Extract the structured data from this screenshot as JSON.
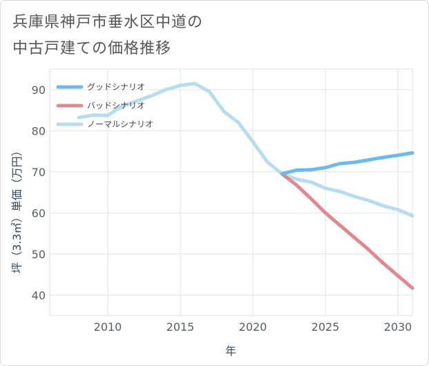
{
  "title": "兵庫県神戸市垂水区中道の\n中古戸建ての価格推移",
  "chart_data": {
    "type": "line",
    "title": "兵庫県神戸市垂水区中道の中古戸建ての価格推移",
    "xlabel": "年",
    "ylabel": "坪（3.3㎡）単価（万円）",
    "xlim": [
      2006,
      2031
    ],
    "ylim": [
      35,
      95
    ],
    "xticks": [
      2010,
      2015,
      2020,
      2025,
      2030
    ],
    "yticks": [
      40,
      50,
      60,
      70,
      80,
      90
    ],
    "grid": true,
    "legend_position": "top-left",
    "series": [
      {
        "name": "グッドシナリオ",
        "color": "#6db8ec",
        "x": [
          2022,
          2023,
          2024,
          2025,
          2026,
          2027,
          2028,
          2029,
          2030,
          2031
        ],
        "y": [
          69.5,
          70.4,
          70.5,
          71.0,
          72.0,
          72.3,
          72.9,
          73.5,
          74.0,
          74.6
        ]
      },
      {
        "name": "バッドシナリオ",
        "color": "#e0888f",
        "x": [
          2022,
          2023,
          2024,
          2025,
          2026,
          2027,
          2028,
          2029,
          2030,
          2031
        ],
        "y": [
          69.5,
          66.8,
          63.5,
          60.0,
          57.0,
          54.0,
          51.0,
          47.7,
          44.7,
          41.7
        ]
      },
      {
        "name": "ノーマルシナリオ",
        "color": "#b6dcee",
        "x": [
          2008,
          2009,
          2010,
          2011,
          2012,
          2013,
          2014,
          2015,
          2016,
          2017,
          2018,
          2019,
          2020,
          2021,
          2022,
          2023,
          2024,
          2025,
          2026,
          2027,
          2028,
          2029,
          2030,
          2031
        ],
        "y": [
          83.2,
          83.8,
          83.7,
          86.0,
          87.2,
          88.5,
          90.0,
          91.0,
          91.5,
          89.5,
          84.7,
          82.0,
          77.3,
          72.4,
          69.5,
          68.2,
          67.5,
          66.0,
          65.2,
          64.0,
          63.0,
          61.7,
          60.8,
          59.3
        ]
      }
    ]
  }
}
